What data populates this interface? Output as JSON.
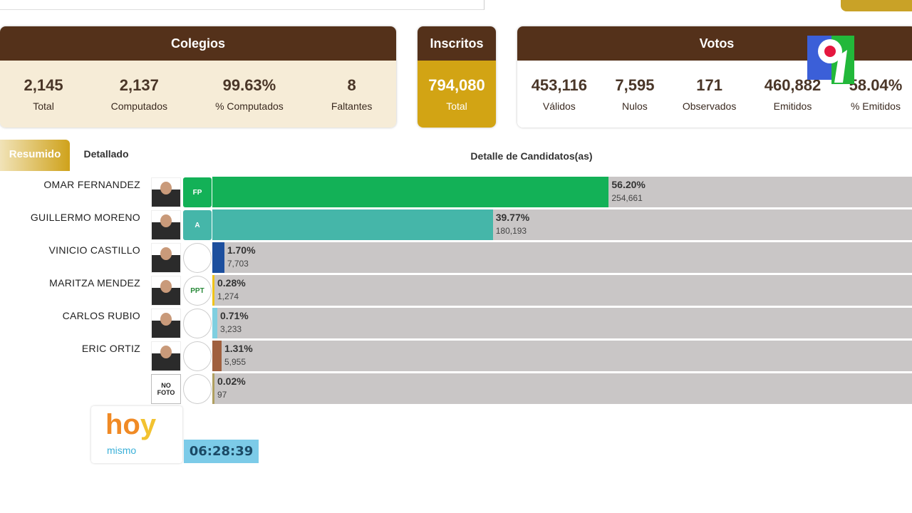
{
  "colegios": {
    "title": "Colegios",
    "stats": [
      {
        "value": "2,145",
        "label": "Total"
      },
      {
        "value": "2,137",
        "label": "Computados"
      },
      {
        "value": "99.63%",
        "label": "% Computados"
      },
      {
        "value": "8",
        "label": "Faltantes"
      }
    ]
  },
  "inscritos": {
    "title": "Inscritos",
    "value": "794,080",
    "label": "Total"
  },
  "votos": {
    "title": "Votos",
    "stats": [
      {
        "value": "453,116",
        "label": "Válidos"
      },
      {
        "value": "7,595",
        "label": "Nulos"
      },
      {
        "value": "171",
        "label": "Observados"
      },
      {
        "value": "460,882",
        "label": "Emitidos"
      },
      {
        "value": "58.04%",
        "label": "% Emitidos"
      }
    ]
  },
  "tabs": [
    {
      "label": "Resumido",
      "active": true
    },
    {
      "label": "Detallado",
      "active": false
    }
  ],
  "section_title": "Detalle de Candidatos(as)",
  "candidates": [
    {
      "name": "OMAR FERNANDEZ",
      "pct": "56.20%",
      "pct_value": 56.2,
      "votes": "254,661",
      "color": "#13b157",
      "party_color": "#13b157",
      "party_text": "FP"
    },
    {
      "name": "GUILLERMO MORENO",
      "pct": "39.77%",
      "pct_value": 39.77,
      "votes": "180,193",
      "color": "#45b6a9",
      "party_color": "#45b6a9",
      "party_text": "A"
    },
    {
      "name": "VINICIO CASTILLO",
      "pct": "1.70%",
      "pct_value": 1.7,
      "votes": "7,703",
      "color": "#1d4f9e",
      "party_color": "#ffffff",
      "party_text": ""
    },
    {
      "name": "MARITZA MENDEZ",
      "pct": "0.28%",
      "pct_value": 0.28,
      "votes": "1,274",
      "color": "#f0c419",
      "party_color": "#ffffff",
      "party_text": "PPT"
    },
    {
      "name": "CARLOS RUBIO",
      "pct": "0.71%",
      "pct_value": 0.71,
      "votes": "3,233",
      "color": "#7fcfe0",
      "party_color": "#ffffff",
      "party_text": ""
    },
    {
      "name": "ERIC ORTIZ",
      "pct": "1.31%",
      "pct_value": 1.31,
      "votes": "5,955",
      "color": "#a0603f",
      "party_color": "#ffffff",
      "party_text": ""
    },
    {
      "name": "",
      "photo_text": "NO FOTO",
      "pct": "0.02%",
      "pct_value": 0.02,
      "votes": "97",
      "color": "#b0a060",
      "party_color": "#ffffff",
      "party_text": ""
    }
  ],
  "overlay": {
    "show_logo": "hoy mismo",
    "time": "06:28:39",
    "channel_logo": "9"
  }
}
